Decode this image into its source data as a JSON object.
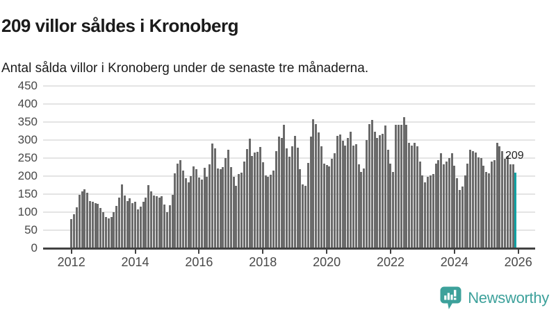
{
  "header": {
    "title": "209 villor såldes i Kronoberg",
    "subtitle": "Antal sålda villor i Kronoberg under de senaste tre månaderna."
  },
  "chart_data": {
    "type": "bar",
    "title": "209 villor såldes i Kronoberg",
    "xlabel": "",
    "ylabel": "",
    "x_unit": "month",
    "x_start": "2012-01",
    "x_end": "2025-12",
    "x_tick_labels": [
      "2012",
      "2014",
      "2016",
      "2018",
      "2020",
      "2022",
      "2024",
      "2026"
    ],
    "ylim": [
      0,
      450
    ],
    "y_ticks": [
      0,
      50,
      100,
      150,
      200,
      250,
      300,
      350,
      400,
      450
    ],
    "grid": "horizontal",
    "legend": "none",
    "bar_color": "#6a6a6a",
    "highlight_color": "#10a2a4",
    "highlight_label": "209",
    "highlight_position": "last",
    "values_by_year": {
      "2012": [
        80,
        93,
        113,
        147,
        157,
        162,
        153,
        130,
        127,
        125,
        122,
        111
      ],
      "2013": [
        100,
        85,
        82,
        85,
        100,
        117,
        140,
        176,
        145,
        130,
        138,
        125
      ],
      "2014": [
        127,
        106,
        115,
        127,
        140,
        175,
        156,
        146,
        144,
        140,
        144,
        120
      ],
      "2015": [
        99,
        118,
        148,
        206,
        233,
        243,
        215,
        193,
        181,
        199,
        226,
        218
      ],
      "2016": [
        196,
        189,
        223,
        198,
        231,
        289,
        276,
        220,
        219,
        225,
        249,
        273
      ],
      "2017": [
        225,
        198,
        172,
        204,
        209,
        240,
        275,
        302,
        255,
        265,
        267,
        279
      ],
      "2018": [
        237,
        201,
        198,
        202,
        214,
        268,
        308,
        304,
        342,
        276,
        253,
        281
      ],
      "2019": [
        311,
        278,
        219,
        176,
        172,
        236,
        309,
        356,
        344,
        321,
        281,
        234
      ],
      "2020": [
        230,
        226,
        247,
        262,
        310,
        315,
        297,
        284,
        304,
        322,
        284,
        288
      ],
      "2021": [
        232,
        210,
        220,
        300,
        344,
        355,
        323,
        305,
        313,
        317,
        339,
        272
      ],
      "2022": [
        234,
        210,
        341,
        342,
        342,
        362,
        341,
        291,
        284,
        291,
        281,
        239
      ],
      "2023": [
        201,
        182,
        198,
        201,
        204,
        234,
        243,
        262,
        232,
        239,
        249,
        263
      ],
      "2024": [
        227,
        194,
        161,
        170,
        201,
        234,
        272,
        268,
        264,
        251,
        250,
        228
      ],
      "2025": [
        210,
        207,
        239,
        243,
        291,
        281,
        268,
        247,
        254,
        232,
        232,
        209
      ]
    }
  },
  "footer": {
    "brand": "Newsworthy",
    "brand_color": "#3da19b"
  }
}
